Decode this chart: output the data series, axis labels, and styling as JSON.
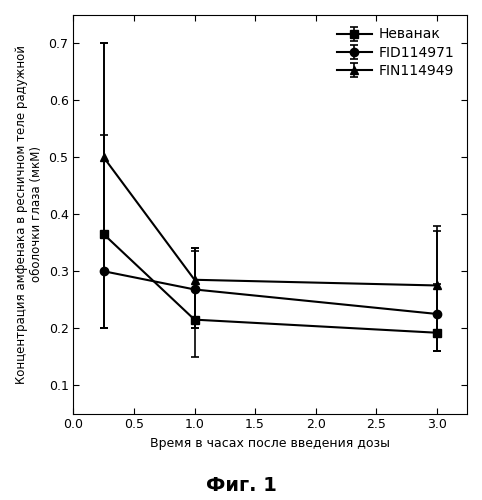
{
  "title": "",
  "xlabel": "Время в часах после введения дозы",
  "ylabel": "Концентрация амфенака в ресничном теле радужной\nоболочки глаза (мкМ)",
  "fig_label": "Фиг. 1",
  "xlim": [
    0.0,
    3.25
  ],
  "ylim": [
    0.05,
    0.75
  ],
  "xticks": [
    0.0,
    0.5,
    1.0,
    1.5,
    2.0,
    2.5,
    3.0
  ],
  "yticks": [
    0.1,
    0.2,
    0.3,
    0.4,
    0.5,
    0.6,
    0.7
  ],
  "series": [
    {
      "label": "Неванак",
      "x": [
        0.25,
        1.0,
        3.0
      ],
      "y": [
        0.365,
        0.215,
        0.192
      ],
      "yerr_low": [
        0.165,
        0.065,
        0.032
      ],
      "yerr_high": [
        0.335,
        0.12,
        0.085
      ],
      "marker": "s",
      "color": "#000000",
      "markersize": 6,
      "linewidth": 1.5
    },
    {
      "label": "FID114971",
      "x": [
        0.25,
        1.0,
        3.0
      ],
      "y": [
        0.3,
        0.268,
        0.225
      ],
      "yerr_low": [
        0.1,
        0.068,
        0.065
      ],
      "yerr_high": [
        0.24,
        0.072,
        0.155
      ],
      "marker": "o",
      "color": "#000000",
      "markersize": 6,
      "linewidth": 1.5
    },
    {
      "label": "FIN114949",
      "x": [
        0.25,
        1.0,
        3.0
      ],
      "y": [
        0.5,
        0.285,
        0.275
      ],
      "yerr_low": [
        0.3,
        0.085,
        0.115
      ],
      "yerr_high": [
        0.2,
        0.055,
        0.095
      ],
      "marker": "^",
      "color": "#000000",
      "markersize": 6,
      "linewidth": 1.5
    }
  ],
  "background_color": "#ffffff",
  "legend_loc": "upper right",
  "legend_fontsize": 10,
  "axis_fontsize": 9,
  "tick_fontsize": 9,
  "ylabel_fontsize": 8.5,
  "xlabel_fontsize": 9,
  "fig_label_fontsize": 14
}
